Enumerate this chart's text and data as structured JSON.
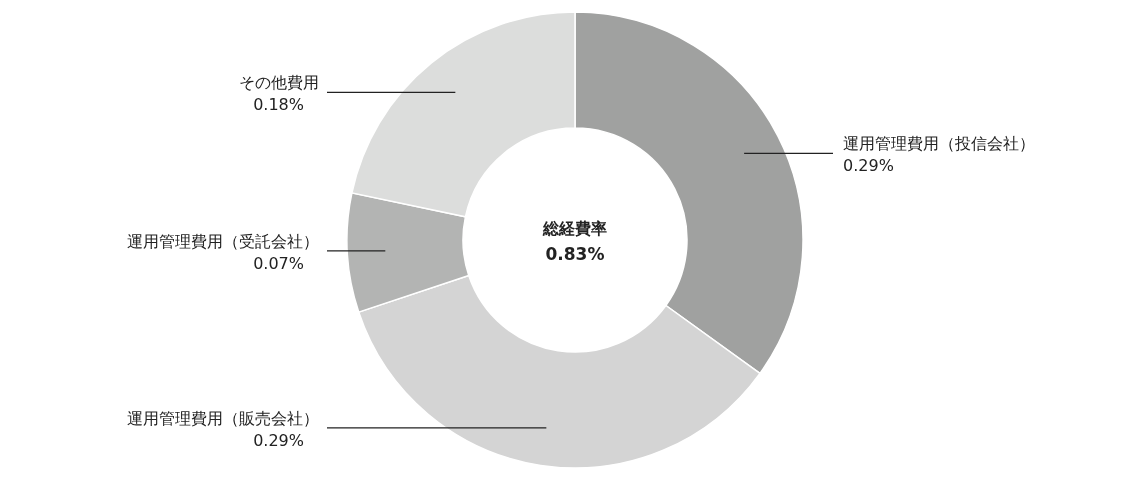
{
  "chart_data": {
    "type": "donut",
    "title": "総経費率",
    "annotations": [
      "0.83%"
    ],
    "categories": [
      "運用管理費用（投信会社）",
      "運用管理費用（販売会社）",
      "運用管理費用（受託会社）",
      "その他費用"
    ],
    "values": [
      0.29,
      0.29,
      0.07,
      0.18
    ],
    "value_labels": [
      "0.29%",
      "0.29%",
      "0.07%",
      "0.18%"
    ],
    "colors": [
      "#a0a1a0",
      "#d4d4d4",
      "#b3b4b3",
      "#dcdddc"
    ]
  }
}
